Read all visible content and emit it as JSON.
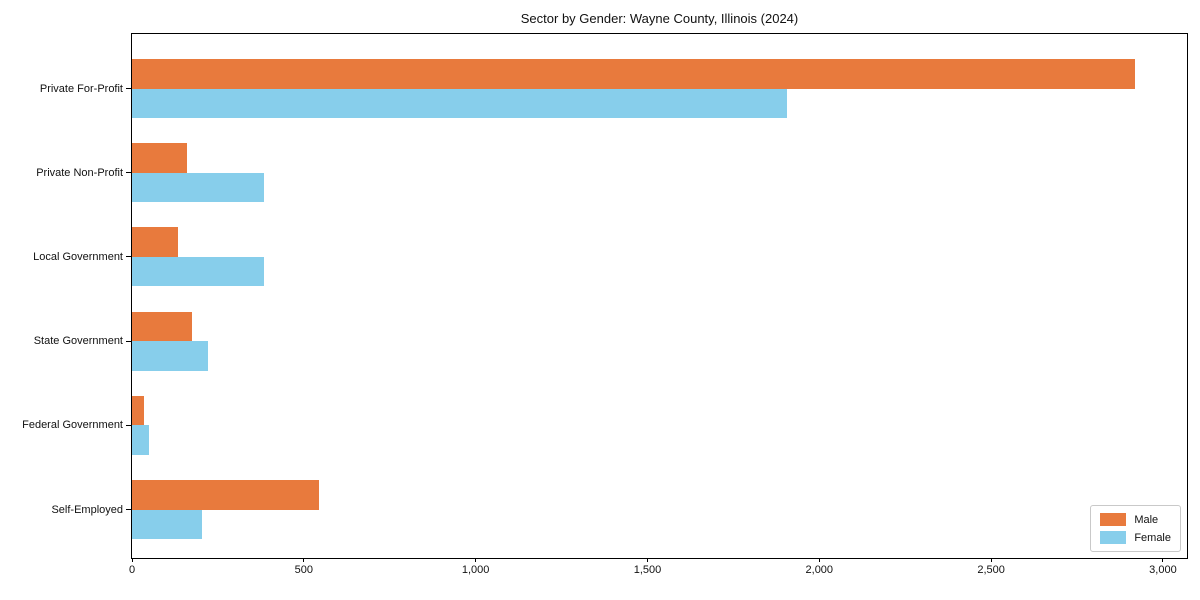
{
  "figure": {
    "background": "#ffffff"
  },
  "colors": {
    "male": "#e87a3d",
    "female": "#87ceeb",
    "spine": "#000000",
    "text": "#111111",
    "legend_border": "#c9c9c9"
  },
  "chart_data": {
    "type": "bar",
    "orientation": "horizontal",
    "title": "Sector by Gender: Wayne County, Illinois (2024)",
    "xlabel": "",
    "ylabel": "",
    "categories": [
      "Private For-Profit",
      "Private Non-Profit",
      "Local Government",
      "State Government",
      "Federal Government",
      "Self-Employed"
    ],
    "series": [
      {
        "name": "Male",
        "color": "#e87a3d",
        "values": [
          2920,
          160,
          135,
          175,
          35,
          545
        ]
      },
      {
        "name": "Female",
        "color": "#87ceeb",
        "values": [
          1905,
          385,
          385,
          220,
          50,
          205
        ]
      }
    ],
    "xlim": [
      0,
      3070
    ],
    "x_ticks": [
      {
        "value": 0,
        "label": "0"
      },
      {
        "value": 500,
        "label": "500"
      },
      {
        "value": 1000,
        "label": "1,000"
      },
      {
        "value": 1500,
        "label": "1,500"
      },
      {
        "value": 2000,
        "label": "2,000"
      },
      {
        "value": 2500,
        "label": "2,500"
      },
      {
        "value": 3000,
        "label": "3,000"
      }
    ],
    "grid": false,
    "legend_position": "lower right"
  }
}
